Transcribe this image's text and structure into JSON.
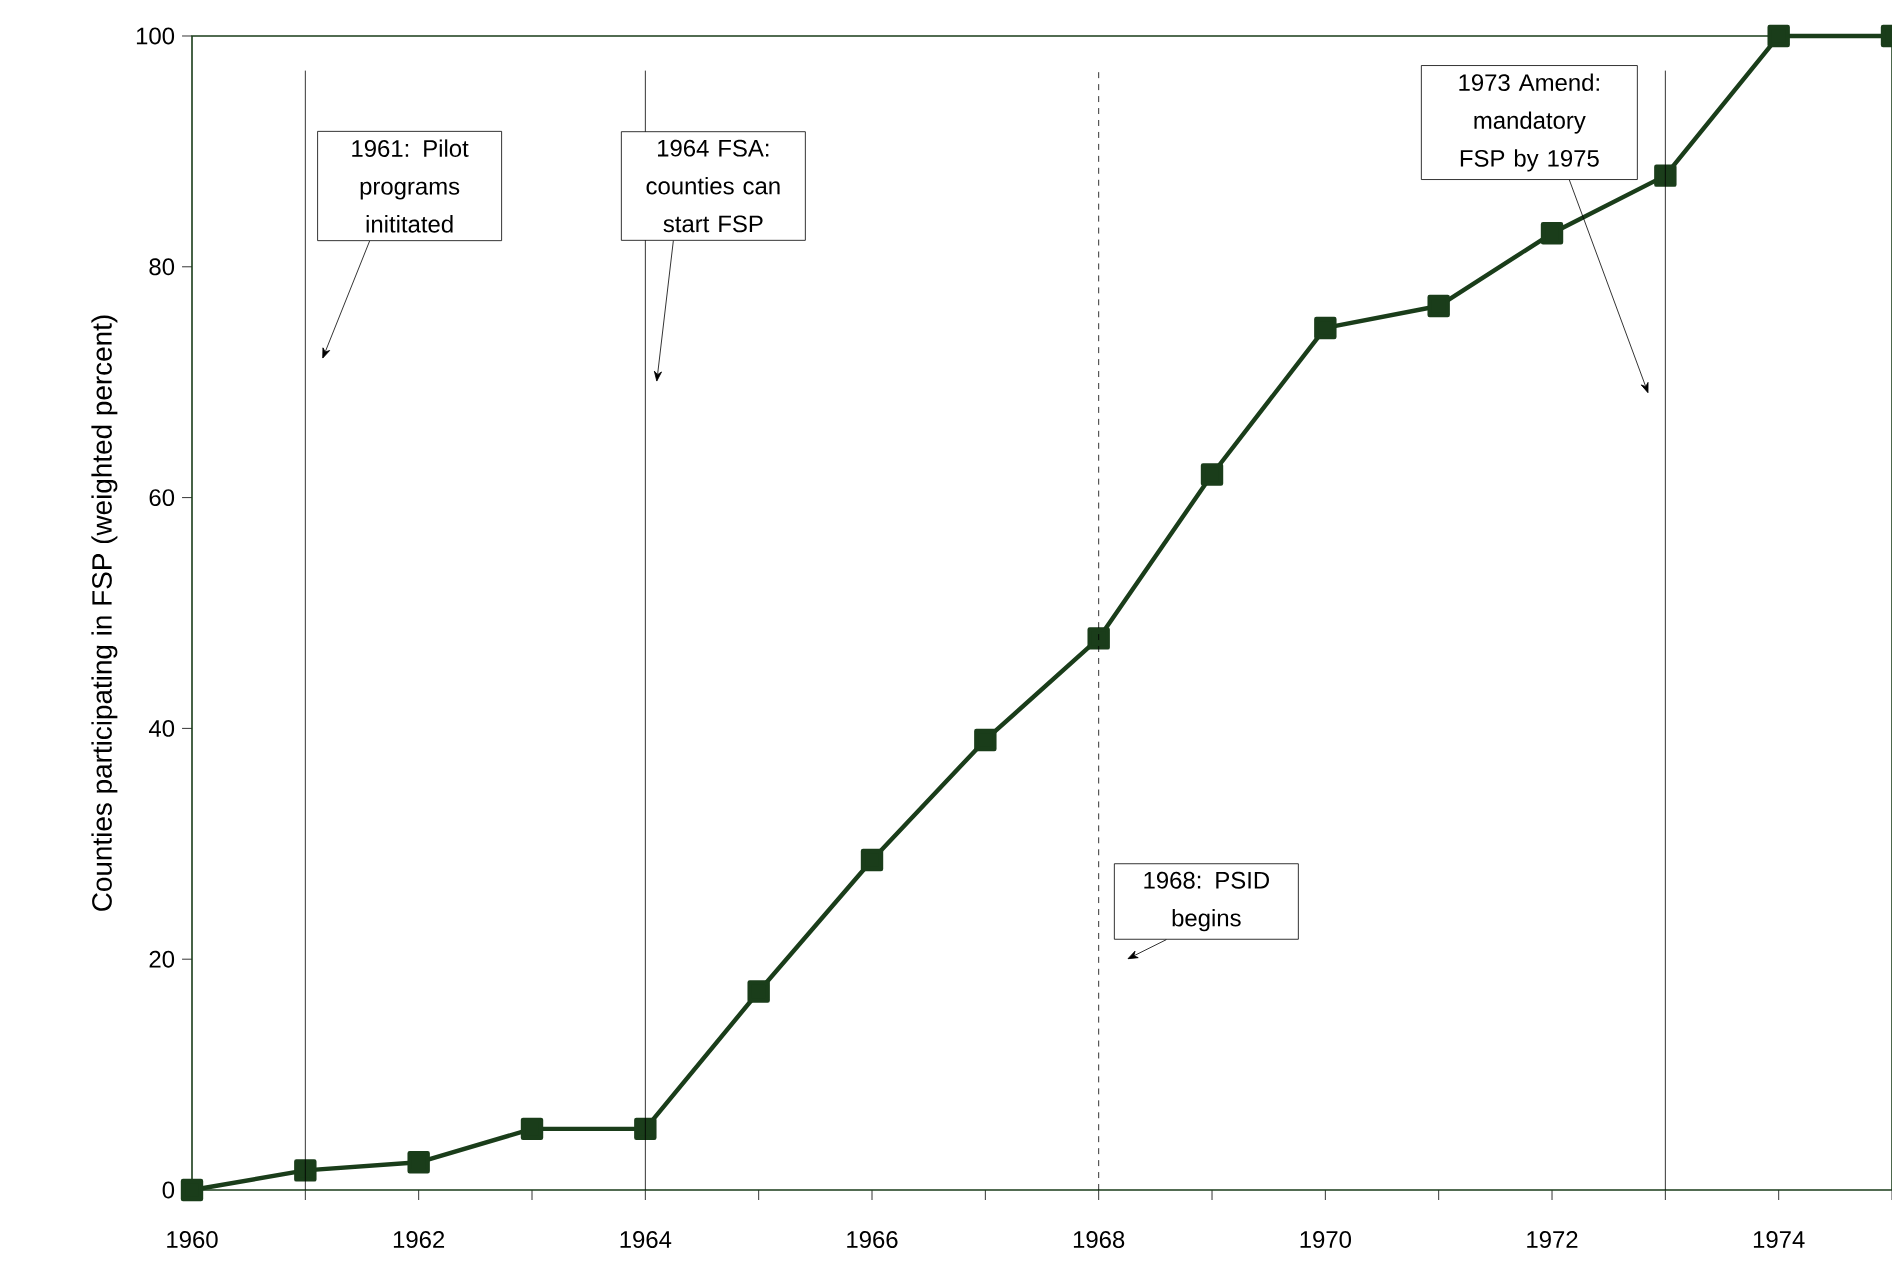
{
  "chart_data": {
    "type": "line",
    "ylabel": "Counties participating in FSP  (weighted percent)",
    "x": [
      1960,
      1961,
      1962,
      1963,
      1964,
      1965,
      1966,
      1967,
      1968,
      1969,
      1970,
      1971,
      1972,
      1973,
      1974,
      1975
    ],
    "series": [
      {
        "color": "#1a3d1a",
        "values": [
          0,
          1.7,
          2.4,
          5.3,
          5.3,
          17.2,
          28.6,
          39.0,
          47.8,
          62.0,
          74.7,
          76.6,
          82.9,
          87.9,
          100,
          100
        ]
      }
    ],
    "xlim": [
      1960,
      1975
    ],
    "ylim": [
      0,
      100
    ],
    "xticks": [
      {
        "value": 1960,
        "label": "1960"
      },
      {
        "value": 1961,
        "label": null
      },
      {
        "value": 1962,
        "label": "1962"
      },
      {
        "value": 1963,
        "label": null
      },
      {
        "value": 1964,
        "label": "1964"
      },
      {
        "value": 1965,
        "label": null
      },
      {
        "value": 1966,
        "label": "1966"
      },
      {
        "value": 1967,
        "label": null
      },
      {
        "value": 1968,
        "label": "1968"
      },
      {
        "value": 1969,
        "label": null
      },
      {
        "value": 1970,
        "label": "1970"
      },
      {
        "value": 1971,
        "label": null
      },
      {
        "value": 1972,
        "label": "1972"
      },
      {
        "value": 1973,
        "label": null
      },
      {
        "value": 1974,
        "label": "1974"
      },
      {
        "value": 1975,
        "label": null
      }
    ],
    "yticks": [
      0,
      20,
      40,
      60,
      80,
      100
    ],
    "ref_lines": [
      {
        "axis": "x",
        "value": 1961,
        "label": "1961: Pilot programs inititated",
        "line_style": "solid"
      },
      {
        "axis": "x",
        "value": 1964,
        "label": "1964 FSA: counties can start FSP",
        "line_style": "solid"
      },
      {
        "axis": "x",
        "value": 1968,
        "label": "1968: PSID begins",
        "line_style": "dashed"
      },
      {
        "axis": "x",
        "value": 1973,
        "label": "1973 Amend: mandatory FSP by 1975",
        "line_style": "solid"
      }
    ],
    "marker": "square",
    "line_style": "solid",
    "grid": false
  }
}
